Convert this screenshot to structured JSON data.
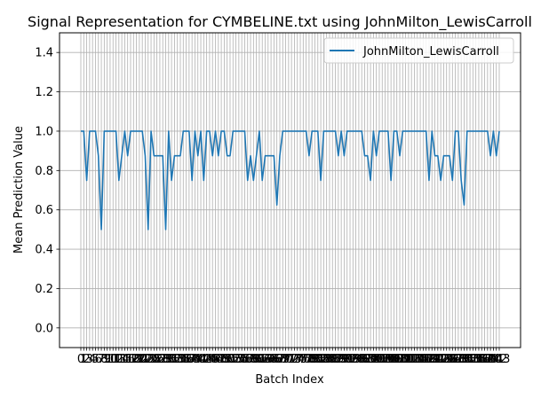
{
  "chart_data": {
    "type": "line",
    "title": "Signal Representation for CYMBELINE.txt using JohnMilton_LewisCarroll",
    "xlabel": "Batch Index",
    "ylabel": "Mean Prediction Value",
    "xlim": [
      0,
      143
    ],
    "ylim": [
      -0.1,
      1.5
    ],
    "y_ticks": [
      "0.0",
      "0.2",
      "0.4",
      "0.6",
      "0.8",
      "1.0",
      "1.2",
      "1.4"
    ],
    "grid": true,
    "legend_position": "top-right",
    "series": [
      {
        "name": "JohnMilton_LewisCarroll",
        "color": "#1f77b4",
        "values": [
          1.0,
          1.0,
          0.75,
          1.0,
          1.0,
          1.0,
          0.875,
          0.5,
          1.0,
          1.0,
          1.0,
          1.0,
          1.0,
          0.75,
          0.875,
          1.0,
          0.875,
          1.0,
          1.0,
          1.0,
          1.0,
          1.0,
          0.875,
          0.5,
          1.0,
          0.875,
          0.875,
          0.875,
          0.875,
          0.5,
          1.0,
          0.75,
          0.875,
          0.875,
          0.875,
          1.0,
          1.0,
          1.0,
          0.75,
          1.0,
          0.875,
          1.0,
          0.75,
          1.0,
          1.0,
          0.875,
          1.0,
          0.875,
          1.0,
          1.0,
          0.875,
          0.875,
          1.0,
          1.0,
          1.0,
          1.0,
          1.0,
          0.75,
          0.875,
          0.75,
          0.875,
          1.0,
          0.75,
          0.875,
          0.875,
          0.875,
          0.875,
          0.625,
          0.875,
          1.0,
          1.0,
          1.0,
          1.0,
          1.0,
          1.0,
          1.0,
          1.0,
          1.0,
          0.875,
          1.0,
          1.0,
          1.0,
          0.75,
          1.0,
          1.0,
          1.0,
          1.0,
          1.0,
          0.875,
          1.0,
          0.875,
          1.0,
          1.0,
          1.0,
          1.0,
          1.0,
          1.0,
          0.875,
          0.875,
          0.75,
          1.0,
          0.875,
          1.0,
          1.0,
          1.0,
          1.0,
          0.75,
          1.0,
          1.0,
          0.875,
          1.0,
          1.0,
          1.0,
          1.0,
          1.0,
          1.0,
          1.0,
          1.0,
          1.0,
          0.75,
          1.0,
          0.875,
          0.875,
          0.75,
          0.875,
          0.875,
          0.875,
          0.75,
          1.0,
          1.0,
          0.75,
          0.625,
          1.0,
          1.0,
          1.0,
          1.0,
          1.0,
          1.0,
          1.0,
          1.0,
          0.875,
          1.0,
          0.875,
          1.0
        ]
      }
    ]
  }
}
